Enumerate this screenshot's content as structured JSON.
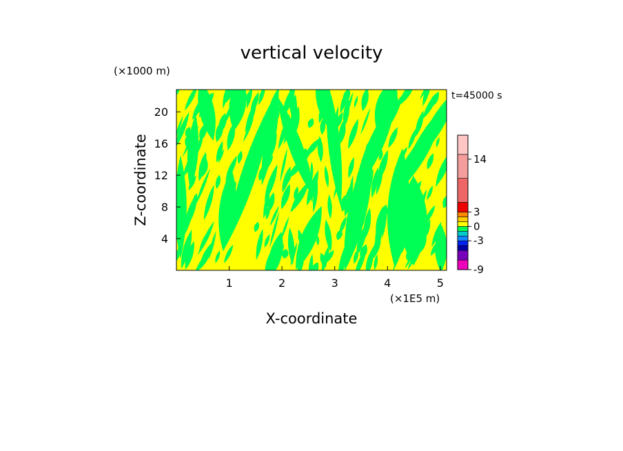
{
  "chart_data": {
    "type": "heatmap",
    "title": "vertical velocity",
    "xlabel": "X-coordinate",
    "ylabel": "Z-coordinate",
    "x_unit": "(×1E5 m)",
    "y_unit": "(×1000 m)",
    "time_label": "t=45000 s",
    "xlim": [
      0,
      5.12
    ],
    "ylim": [
      0,
      22.8
    ],
    "x_ticks": [
      1,
      2,
      3,
      4,
      5
    ],
    "y_ticks": [
      4,
      8,
      12,
      16,
      20
    ],
    "field_colors": {
      "positive": "#ffff00",
      "negative": "#00ff55"
    },
    "colorbar": {
      "tick_labels": [
        "14",
        "3",
        "0",
        "-3",
        "-9"
      ],
      "tick_values": [
        14,
        3,
        0,
        -3,
        -9
      ],
      "bands": [
        {
          "from": -9,
          "to": -7,
          "color": "#ee00bb"
        },
        {
          "from": -7,
          "to": -5,
          "color": "#7700bb"
        },
        {
          "from": -5,
          "to": -4,
          "color": "#0000aa"
        },
        {
          "from": -4,
          "to": -3,
          "color": "#0022ee"
        },
        {
          "from": -3,
          "to": -2,
          "color": "#1188ff"
        },
        {
          "from": -2,
          "to": -1,
          "color": "#00cccc"
        },
        {
          "from": -1,
          "to": 0,
          "color": "#00ff55"
        },
        {
          "from": 0,
          "to": 1,
          "color": "#ffff00"
        },
        {
          "from": 1,
          "to": 2,
          "color": "#ffcc00"
        },
        {
          "from": 2,
          "to": 3,
          "color": "#ff8800"
        },
        {
          "from": 3,
          "to": 5,
          "color": "#ee0000"
        },
        {
          "from": 5,
          "to": 10,
          "color": "#ee6666"
        },
        {
          "from": 10,
          "to": 15,
          "color": "#f59c9c"
        },
        {
          "from": 15,
          "to": 19,
          "color": "#ffc6c6"
        }
      ]
    }
  }
}
